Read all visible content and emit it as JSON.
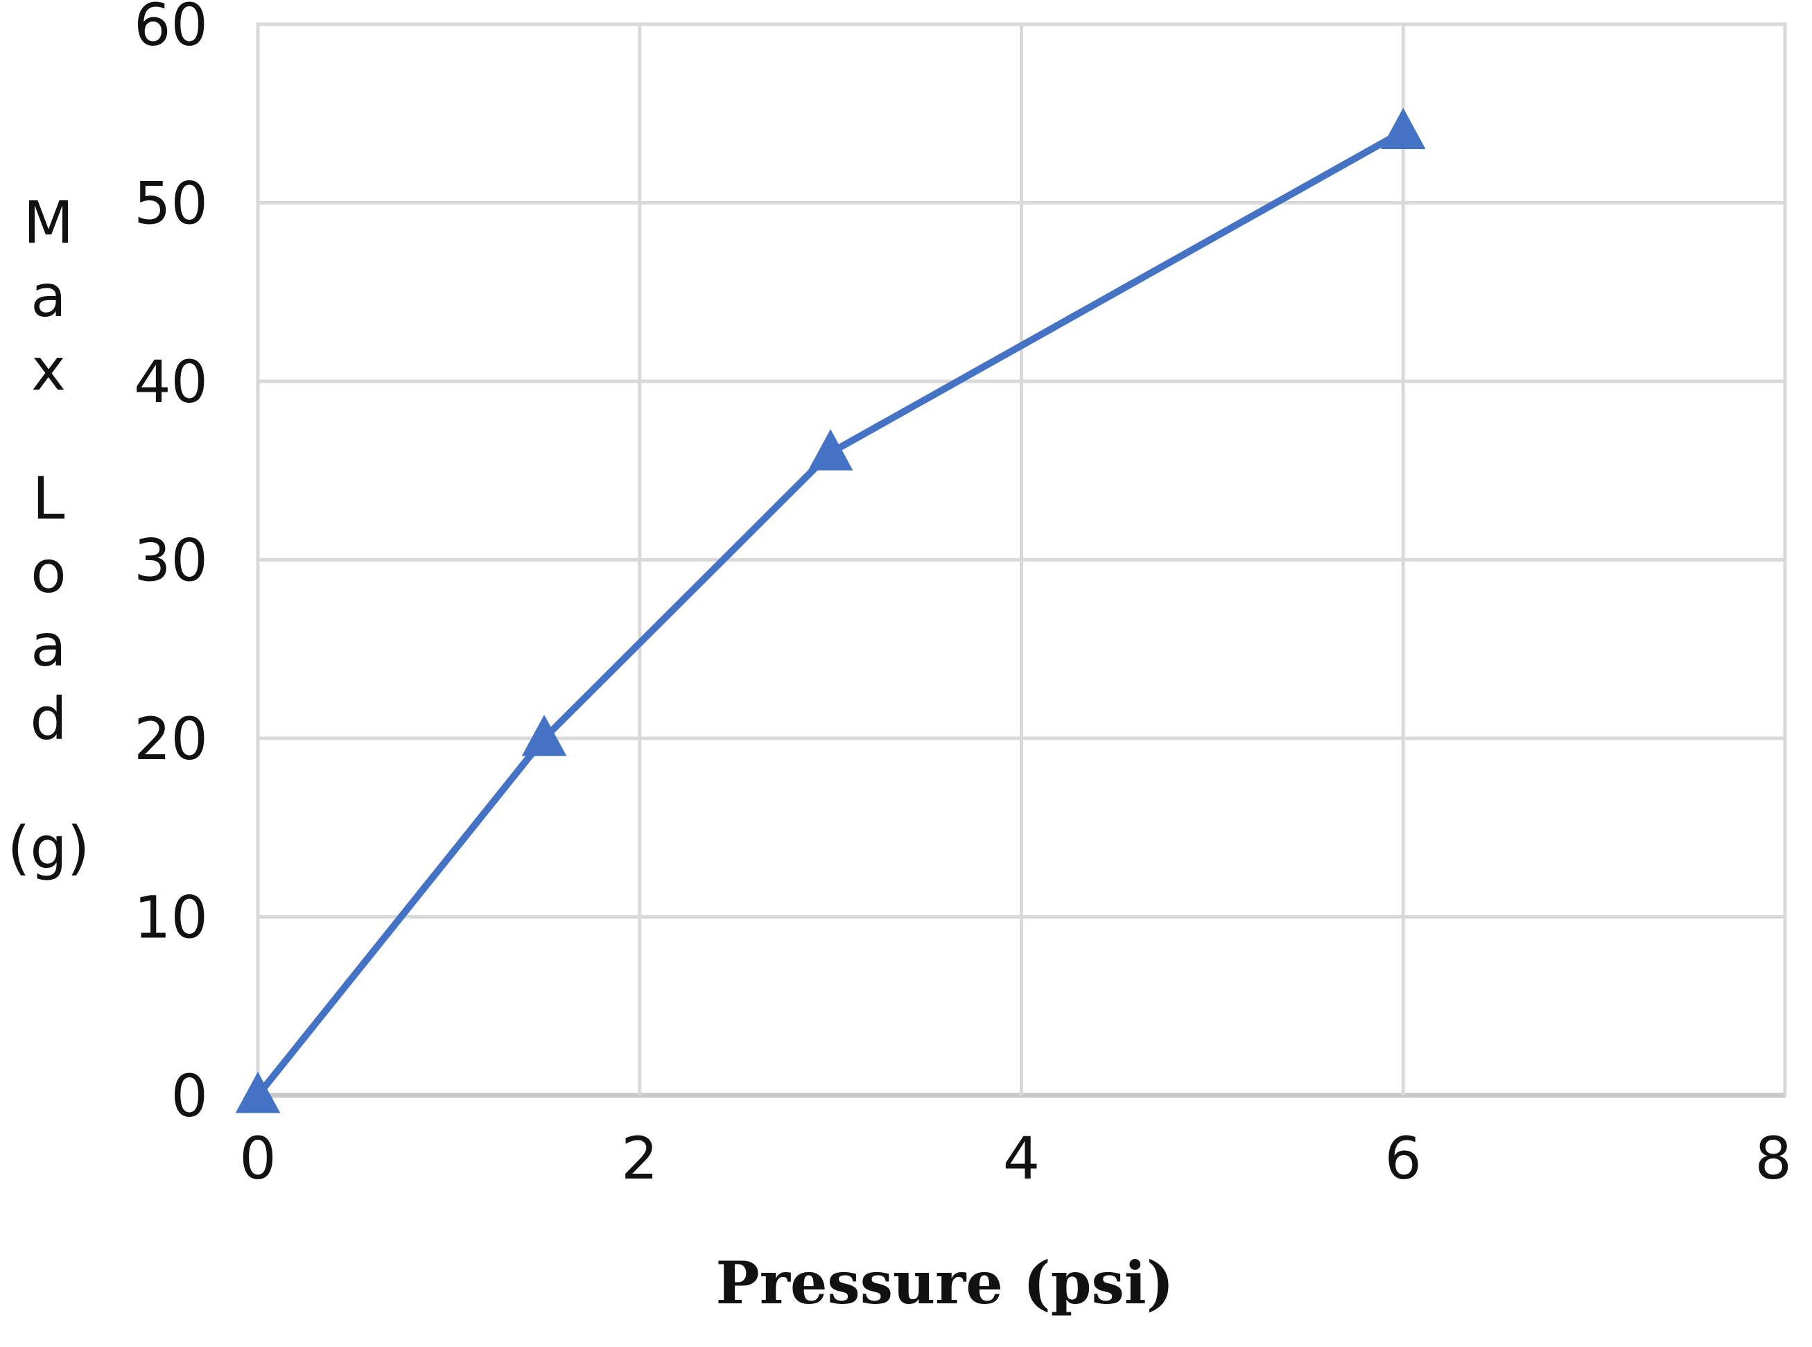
{
  "chart_data": {
    "type": "line",
    "title": "",
    "xlabel": "Pressure (psi)",
    "ylabel": "Max Load (g)",
    "x": [
      0,
      1.5,
      3,
      6
    ],
    "series": [
      {
        "values": [
          0,
          20,
          36,
          54
        ],
        "marker": "triangle",
        "color": "#4472C4"
      }
    ],
    "xlim": [
      0,
      8
    ],
    "ylim": [
      0,
      60
    ],
    "xticks": [
      0,
      2,
      4,
      6,
      8
    ],
    "yticks": [
      0,
      10,
      20,
      30,
      40,
      50,
      60
    ],
    "grid": true,
    "legend": "none"
  },
  "colors": {
    "line": "#4472C4",
    "grid": "#d9d9d9",
    "axis": "#c8c8c8"
  }
}
